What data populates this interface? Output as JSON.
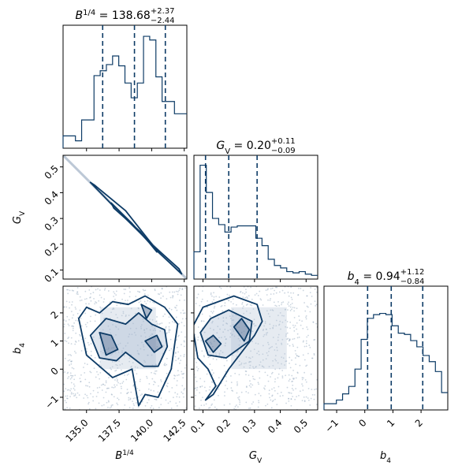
{
  "chart_data": {
    "type": "corner",
    "color": "#0d3b66",
    "parameters": [
      {
        "key": "B",
        "name": "B^{1/4}",
        "median": 138.68,
        "err_plus": 2.37,
        "err_minus": 2.44,
        "title_val": "138.68",
        "title_plus": "+2.37",
        "title_minus": "−2.44",
        "range": [
          133.2,
          142.7
        ],
        "ticks": [
          135.0,
          137.5,
          140.0,
          142.5
        ],
        "tick_labels": [
          "135.0",
          "137.5",
          "140.0",
          "142.5"
        ],
        "quantiles": [
          136.24,
          138.68,
          141.05
        ]
      },
      {
        "key": "G",
        "name": "G_V",
        "median": 0.2,
        "err_plus": 0.11,
        "err_minus": 0.09,
        "title_val": "0.20",
        "title_plus": "+0.11",
        "title_minus": "−0.09",
        "range": [
          0.065,
          0.545
        ],
        "ticks": [
          0.1,
          0.2,
          0.3,
          0.4,
          0.5
        ],
        "tick_labels": [
          "0.1",
          "0.2",
          "0.3",
          "0.4",
          "0.5"
        ],
        "quantiles": [
          0.11,
          0.2,
          0.31
        ]
      },
      {
        "key": "b",
        "name": "b_4",
        "median": 0.94,
        "err_plus": 1.12,
        "err_minus": 0.84,
        "title_val": "0.94",
        "title_plus": "+1.12",
        "title_minus": "−0.84",
        "range": [
          -1.45,
          2.95
        ],
        "ticks": [
          -1,
          0,
          1,
          2
        ],
        "tick_labels": [
          "−1",
          "0",
          "1",
          "2"
        ],
        "quantiles": [
          0.1,
          0.94,
          2.06
        ]
      }
    ],
    "histograms": {
      "B": [
        0.1,
        0.1,
        0.06,
        0.23,
        0.23,
        0.59,
        0.63,
        0.68,
        0.75,
        0.67,
        0.53,
        0.41,
        0.53,
        0.91,
        0.88,
        0.58,
        0.38,
        0.38,
        0.28,
        0.28
      ],
      "G": [
        0.22,
        0.92,
        0.7,
        0.49,
        0.44,
        0.38,
        0.42,
        0.43,
        0.43,
        0.43,
        0.33,
        0.27,
        0.16,
        0.11,
        0.09,
        0.06,
        0.05,
        0.06,
        0.04,
        0.03
      ],
      "b": [
        0.05,
        0.05,
        0.08,
        0.13,
        0.19,
        0.33,
        0.57,
        0.74,
        0.77,
        0.78,
        0.77,
        0.68,
        0.62,
        0.61,
        0.56,
        0.51,
        0.44,
        0.39,
        0.31,
        0.14
      ]
    },
    "contours": {
      "GB_line": [
        [
          133.2,
          0.545
        ],
        [
          142.7,
          0.065
        ]
      ],
      "GB": [
        [
          [
            135.6,
            0.43
          ],
          [
            138.0,
            0.33
          ],
          [
            140.5,
            0.17
          ],
          [
            142.3,
            0.085
          ],
          [
            142.1,
            0.105
          ],
          [
            140.0,
            0.2
          ],
          [
            137.4,
            0.33
          ],
          [
            135.3,
            0.44
          ]
        ],
        [
          [
            137.1,
            0.34
          ],
          [
            139.1,
            0.25
          ],
          [
            140.4,
            0.17
          ],
          [
            140.1,
            0.19
          ],
          [
            138.5,
            0.28
          ],
          [
            136.9,
            0.36
          ]
        ]
      ],
      "bB": [
        [
          [
            134.4,
            1.8
          ],
          [
            135.0,
            0.5
          ],
          [
            136.0,
            0.1
          ],
          [
            137.0,
            -0.3
          ],
          [
            138.5,
            0.0
          ],
          [
            139.0,
            -1.3
          ],
          [
            139.5,
            -0.9
          ],
          [
            140.5,
            -1.0
          ],
          [
            141.5,
            0.0
          ],
          [
            141.8,
            1.0
          ],
          [
            142.0,
            1.6
          ],
          [
            141.0,
            2.2
          ],
          [
            139.5,
            2.6
          ],
          [
            138.2,
            2.3
          ],
          [
            137.0,
            2.4
          ],
          [
            136.0,
            2.0
          ],
          [
            135.0,
            2.2
          ]
        ],
        [
          [
            135.3,
            1.2
          ],
          [
            136.0,
            0.4
          ],
          [
            137.3,
            0.3
          ],
          [
            138.0,
            0.6
          ],
          [
            139.4,
            0.1
          ],
          [
            140.5,
            0.1
          ],
          [
            141.2,
            0.8
          ],
          [
            141.0,
            1.4
          ],
          [
            140.0,
            1.6
          ],
          [
            139.0,
            2.0
          ],
          [
            138.0,
            1.6
          ],
          [
            136.5,
            1.8
          ]
        ],
        [
          [
            136.0,
            1.3
          ],
          [
            136.5,
            0.5
          ],
          [
            137.4,
            0.7
          ],
          [
            136.9,
            1.2
          ]
        ],
        [
          [
            139.5,
            1.0
          ],
          [
            140.2,
            0.6
          ],
          [
            140.8,
            0.8
          ],
          [
            140.4,
            1.2
          ]
        ],
        [
          [
            139.2,
            2.3
          ],
          [
            139.6,
            1.8
          ],
          [
            140.0,
            2.1
          ]
        ]
      ],
      "bG": [
        [
          [
            0.06,
            1.5
          ],
          [
            0.08,
            0.4
          ],
          [
            0.12,
            0.0
          ],
          [
            0.15,
            -0.6
          ],
          [
            0.11,
            -1.1
          ],
          [
            0.14,
            -0.9
          ],
          [
            0.2,
            0.0
          ],
          [
            0.25,
            0.6
          ],
          [
            0.3,
            1.2
          ],
          [
            0.33,
            1.7
          ],
          [
            0.31,
            2.3
          ],
          [
            0.22,
            2.6
          ],
          [
            0.16,
            2.4
          ],
          [
            0.1,
            2.2
          ]
        ],
        [
          [
            0.09,
            1.3
          ],
          [
            0.12,
            0.5
          ],
          [
            0.19,
            0.4
          ],
          [
            0.28,
            1.0
          ],
          [
            0.29,
            1.7
          ],
          [
            0.2,
            2.1
          ],
          [
            0.13,
            1.8
          ]
        ],
        [
          [
            0.11,
            1.0
          ],
          [
            0.14,
            0.6
          ],
          [
            0.17,
            0.9
          ],
          [
            0.14,
            1.2
          ]
        ],
        [
          [
            0.22,
            1.5
          ],
          [
            0.26,
            1.0
          ],
          [
            0.28,
            1.4
          ],
          [
            0.25,
            1.8
          ]
        ]
      ]
    }
  }
}
